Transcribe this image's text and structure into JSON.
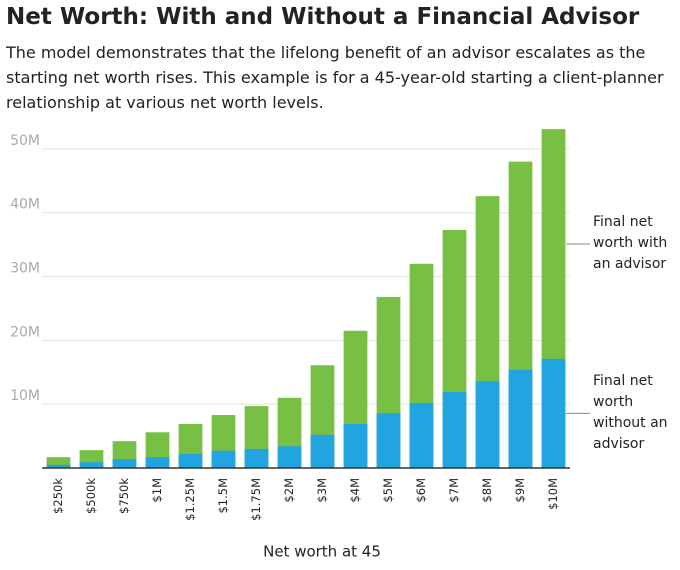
{
  "chart_data": {
    "type": "bar",
    "title": "Net Worth: With and Without a Financial Advisor",
    "subtitle": "The model demonstrates that the lifelong benefit of an advisor escalates as the starting net worth rises. This example is for a 45-year-old starting a client-planner relationship at various net worth levels.",
    "x_label": "Net worth at 45",
    "categories": [
      "$250k",
      "$500k",
      "$750k",
      "$1M",
      "$1.25M",
      "$1.5M",
      "$1.75M",
      "$2M",
      "$3M",
      "$4M",
      "$5M",
      "$6M",
      "$7M",
      "$8M",
      "$9M",
      "$10M"
    ],
    "series": [
      {
        "name": "Final net worth with an advisor",
        "color": "#78c043",
        "values": [
          1.7,
          2.8,
          4.2,
          5.6,
          6.9,
          8.3,
          9.7,
          11.0,
          16.1,
          21.5,
          26.8,
          32.0,
          37.3,
          42.6,
          48.0,
          53.1
        ]
      },
      {
        "name": "Final net worth without an advisor",
        "color": "#21a4e0",
        "values": [
          0.5,
          0.9,
          1.4,
          1.7,
          2.2,
          2.7,
          3.0,
          3.4,
          5.2,
          6.9,
          8.6,
          10.2,
          11.9,
          13.6,
          15.4,
          17.1
        ]
      }
    ],
    "ylim": [
      0,
      55
    ],
    "yticks": [
      {
        "value": 10,
        "label": "10M"
      },
      {
        "value": 20,
        "label": "20M"
      },
      {
        "value": 30,
        "label": "30M"
      },
      {
        "value": 40,
        "label": "40M"
      },
      {
        "value": 50,
        "label": "50M"
      }
    ],
    "grid": true
  }
}
